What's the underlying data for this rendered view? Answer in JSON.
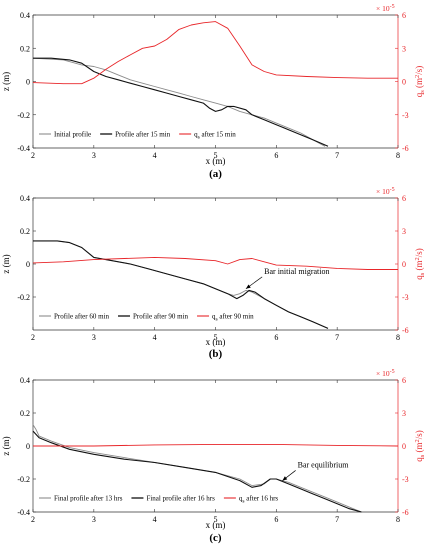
{
  "colors": {
    "red": "#e8262a",
    "black": "#111111",
    "gray": "#8c8c8c",
    "axis": "#333333"
  },
  "chart_data": [
    {
      "type": "line",
      "panel_label": "(a)",
      "xlabel": "x (m)",
      "ylabel_left": "z (m)",
      "ylabel_right_main": "q",
      "ylabel_right_sub": "s",
      "ylabel_right_unit_pre": " (m",
      "ylabel_right_unit_sup": "2",
      "ylabel_right_unit_post": "/s)",
      "right_exponent_base": "× 10",
      "right_exponent_power": "-5",
      "xlim": [
        2,
        8
      ],
      "ylim_left": [
        -0.4,
        0.4
      ],
      "ylim_right": [
        -6,
        6
      ],
      "xticks": [
        "2",
        "3",
        "4",
        "5",
        "6",
        "7",
        "8"
      ],
      "yticks_left": [
        "-0.4",
        "-0.2",
        "0",
        "0.2",
        "0.4"
      ],
      "yticks_right": [
        "-6",
        "-3",
        "0",
        "3",
        "6"
      ],
      "grid": false,
      "legend_position": "bottom-left",
      "annotation": null,
      "series": [
        {
          "name": "Initial profile",
          "axis": "left",
          "color": "gray",
          "width": 0.9,
          "x": [
            2,
            2.5,
            2.8,
            3.0,
            3.2,
            3.4,
            3.6,
            3.8,
            4.0,
            4.2,
            4.4,
            4.6,
            4.8,
            5.0,
            5.2,
            5.4,
            5.6,
            5.8,
            6.0,
            6.2,
            6.4,
            6.6,
            6.8
          ],
          "y": [
            0.14,
            0.13,
            0.1,
            0.09,
            0.07,
            0.04,
            0.01,
            -0.01,
            -0.03,
            -0.05,
            -0.07,
            -0.09,
            -0.11,
            -0.13,
            -0.15,
            -0.18,
            -0.2,
            -0.22,
            -0.25,
            -0.28,
            -0.31,
            -0.35,
            -0.39
          ]
        },
        {
          "name": "Profile after 15 min",
          "axis": "left",
          "color": "black",
          "width": 1.1,
          "x": [
            2,
            2.3,
            2.6,
            2.8,
            3.0,
            3.2,
            3.4,
            3.6,
            3.8,
            4.0,
            4.2,
            4.4,
            4.6,
            4.8,
            4.9,
            5.0,
            5.1,
            5.2,
            5.3,
            5.5,
            5.6,
            5.8,
            6.0,
            6.2,
            6.4,
            6.6,
            6.85
          ],
          "y": [
            0.14,
            0.14,
            0.13,
            0.11,
            0.06,
            0.03,
            0.01,
            -0.01,
            -0.03,
            -0.05,
            -0.07,
            -0.09,
            -0.11,
            -0.13,
            -0.16,
            -0.18,
            -0.17,
            -0.15,
            -0.15,
            -0.17,
            -0.2,
            -0.23,
            -0.26,
            -0.29,
            -0.32,
            -0.35,
            -0.39
          ]
        },
        {
          "name": "q",
          "name_sub": "s",
          "name_post": " after 15 min",
          "axis": "right",
          "color": "red",
          "width": 0.9,
          "x": [
            2,
            2.5,
            2.8,
            3.0,
            3.2,
            3.4,
            3.6,
            3.8,
            4.0,
            4.2,
            4.4,
            4.6,
            4.8,
            5.0,
            5.2,
            5.4,
            5.6,
            5.8,
            6.0,
            6.5,
            7.0,
            7.5,
            8.0
          ],
          "y": [
            -0.1,
            -0.2,
            -0.2,
            0.3,
            1.1,
            1.8,
            2.4,
            3.0,
            3.2,
            3.8,
            4.7,
            5.1,
            5.3,
            5.4,
            4.8,
            3.2,
            1.5,
            0.9,
            0.6,
            0.45,
            0.35,
            0.3,
            0.3
          ]
        }
      ]
    },
    {
      "type": "line",
      "panel_label": "(b)",
      "xlabel": "x (m)",
      "ylabel_left": "z (m)",
      "ylabel_right_main": "q",
      "ylabel_right_sub": "s",
      "ylabel_right_unit_pre": " (m",
      "ylabel_right_unit_sup": "2",
      "ylabel_right_unit_post": "/s)",
      "right_exponent_base": "× 10",
      "right_exponent_power": "-5",
      "xlim": [
        2,
        8
      ],
      "ylim_left": [
        -0.4,
        0.4
      ],
      "ylim_right": [
        -6,
        6
      ],
      "xticks": [
        "2",
        "3",
        "4",
        "5",
        "6",
        "7",
        "8"
      ],
      "yticks_left": [
        "-0.2",
        "0",
        "0.2",
        "0.4"
      ],
      "yticks_right": [
        "-6",
        "-3",
        "0",
        "3",
        "6"
      ],
      "grid": false,
      "legend_position": "bottom-left",
      "annotation": {
        "text": "Bar initial migration",
        "x": 5.8,
        "y": -0.06,
        "arrow_to_x": 5.5,
        "arrow_to_y": -0.15
      },
      "series": [
        {
          "name": "Profile after 60  min",
          "axis": "left",
          "color": "gray",
          "width": 0.9,
          "x": [
            2,
            2.4,
            2.6,
            2.8,
            3.0,
            3.3,
            3.6,
            3.9,
            4.2,
            4.5,
            4.8,
            5.0,
            5.2,
            5.3,
            5.4,
            5.5,
            5.6,
            5.8,
            6.0,
            6.2,
            6.4,
            6.6,
            6.85
          ],
          "y": [
            0.14,
            0.14,
            0.13,
            0.1,
            0.04,
            0.02,
            0.0,
            -0.03,
            -0.06,
            -0.09,
            -0.12,
            -0.15,
            -0.18,
            -0.19,
            -0.18,
            -0.16,
            -0.17,
            -0.21,
            -0.25,
            -0.29,
            -0.32,
            -0.35,
            -0.39
          ]
        },
        {
          "name": "Profile after 90 min",
          "axis": "left",
          "color": "black",
          "width": 1.1,
          "x": [
            2,
            2.4,
            2.6,
            2.8,
            3.0,
            3.3,
            3.6,
            3.9,
            4.2,
            4.5,
            4.8,
            5.0,
            5.2,
            5.35,
            5.45,
            5.55,
            5.65,
            5.8,
            6.0,
            6.2,
            6.4,
            6.6,
            6.85
          ],
          "y": [
            0.14,
            0.14,
            0.13,
            0.1,
            0.04,
            0.02,
            0.0,
            -0.03,
            -0.06,
            -0.09,
            -0.12,
            -0.15,
            -0.18,
            -0.21,
            -0.19,
            -0.16,
            -0.17,
            -0.21,
            -0.25,
            -0.29,
            -0.32,
            -0.35,
            -0.39
          ]
        },
        {
          "name": "q",
          "name_sub": "s",
          "name_post": " after 90 min",
          "axis": "right",
          "color": "red",
          "width": 0.9,
          "x": [
            2,
            2.5,
            3.0,
            3.5,
            4.0,
            4.5,
            5.0,
            5.2,
            5.4,
            5.6,
            5.8,
            6.0,
            6.5,
            7.0,
            7.5,
            8.0
          ],
          "y": [
            0.1,
            0.2,
            0.4,
            0.5,
            0.6,
            0.5,
            0.3,
            0.0,
            0.4,
            0.5,
            0.2,
            -0.1,
            -0.2,
            -0.4,
            -0.5,
            -0.5
          ]
        }
      ]
    },
    {
      "type": "line",
      "panel_label": "(c)",
      "xlabel": "x (m)",
      "ylabel_left": "z (m)",
      "ylabel_right_main": "q",
      "ylabel_right_sub": "s",
      "ylabel_right_unit_pre": " (m",
      "ylabel_right_unit_sup": "2",
      "ylabel_right_unit_post": "/s)",
      "right_exponent_base": "× 10",
      "right_exponent_power": "-5",
      "xlim": [
        2,
        8
      ],
      "ylim_left": [
        -0.4,
        0.4
      ],
      "ylim_right": [
        -6,
        6
      ],
      "xticks": [
        "2",
        "3",
        "4",
        "5",
        "6",
        "7",
        "8"
      ],
      "yticks_left": [
        "-0.4",
        "-0.2",
        "0",
        "0.2",
        "0.4"
      ],
      "yticks_right": [
        "-6",
        "-3",
        "0",
        "3",
        "6"
      ],
      "grid": false,
      "legend_position": "bottom-left",
      "annotation": {
        "text": "Bar equilibrium",
        "x": 6.35,
        "y": -0.13,
        "arrow_to_x": 6.1,
        "arrow_to_y": -0.21
      },
      "series": [
        {
          "name": "Final profile after 13 hrs",
          "axis": "left",
          "color": "gray",
          "width": 0.9,
          "x": [
            2,
            2.05,
            2.1,
            2.3,
            2.6,
            3.0,
            3.5,
            4.0,
            4.5,
            5.0,
            5.4,
            5.6,
            5.8,
            5.9,
            6.0,
            6.2,
            6.4,
            6.6,
            6.8,
            7.0,
            7.2,
            7.4
          ],
          "y": [
            0.13,
            0.1,
            0.06,
            0.03,
            -0.01,
            -0.04,
            -0.07,
            -0.1,
            -0.13,
            -0.16,
            -0.2,
            -0.24,
            -0.23,
            -0.2,
            -0.2,
            -0.22,
            -0.25,
            -0.28,
            -0.31,
            -0.34,
            -0.37,
            -0.4
          ]
        },
        {
          "name": "Final profile after 16 hrs",
          "axis": "left",
          "color": "black",
          "width": 1.1,
          "x": [
            2,
            2.05,
            2.1,
            2.3,
            2.6,
            3.0,
            3.5,
            4.0,
            4.5,
            5.0,
            5.4,
            5.6,
            5.75,
            5.9,
            6.0,
            6.2,
            6.4,
            6.6,
            6.8,
            7.0,
            7.2,
            7.4
          ],
          "y": [
            0.09,
            0.07,
            0.05,
            0.02,
            -0.02,
            -0.05,
            -0.08,
            -0.1,
            -0.13,
            -0.16,
            -0.21,
            -0.25,
            -0.24,
            -0.2,
            -0.2,
            -0.23,
            -0.26,
            -0.29,
            -0.32,
            -0.35,
            -0.38,
            -0.4
          ]
        },
        {
          "name": "q",
          "name_sub": "s",
          "name_post": " after 16 hrs",
          "axis": "right",
          "color": "red",
          "width": 0.9,
          "x": [
            2,
            3,
            4,
            5,
            6,
            7,
            8
          ],
          "y": [
            0.0,
            0.0,
            0.1,
            0.15,
            0.15,
            0.05,
            0.0
          ]
        }
      ]
    }
  ]
}
